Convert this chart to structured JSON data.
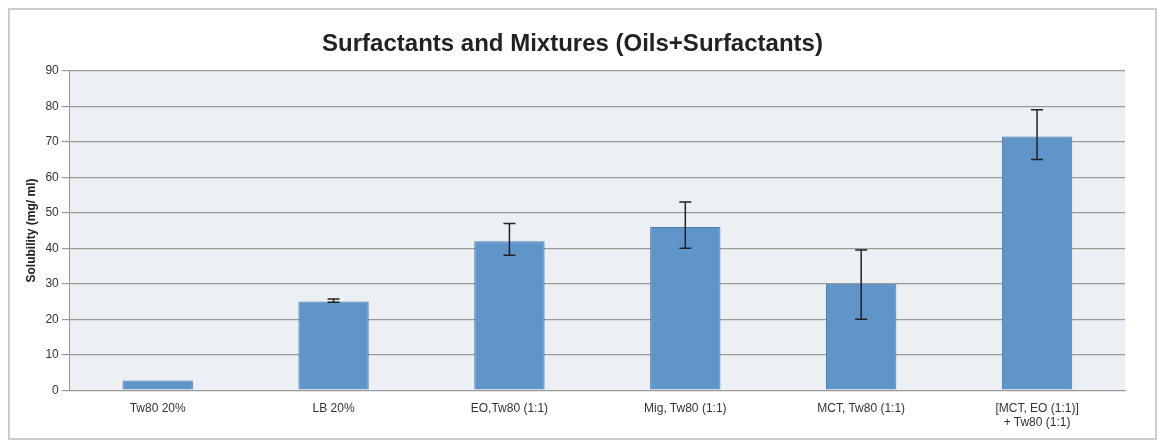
{
  "chart_data": {
    "type": "bar",
    "title": "Surfactants and Mixtures (Oils+Surfactants)",
    "ylabel": "Solubility (mg/ ml)",
    "categories": [
      "Tw80 20%",
      "LB 20%",
      "EO,Tw80 (1:1)",
      "Mig, Tw80 (1:1)",
      "MCT, Tw80 (1:1)",
      "[MCT, EO (1:1)] + Tw80 (1:1)"
    ],
    "values": [
      2.7,
      25,
      42,
      46,
      30,
      71.5
    ],
    "errors": [
      null,
      [
        24.8,
        25.7
      ],
      [
        38,
        47
      ],
      [
        40,
        53
      ],
      [
        20,
        39.5
      ],
      [
        65,
        79
      ]
    ],
    "color": "#5f95c9",
    "ylim": [
      0,
      90
    ],
    "yticks": [
      0,
      10,
      20,
      30,
      40,
      50,
      60,
      70,
      80,
      90
    ],
    "grid": "y"
  }
}
